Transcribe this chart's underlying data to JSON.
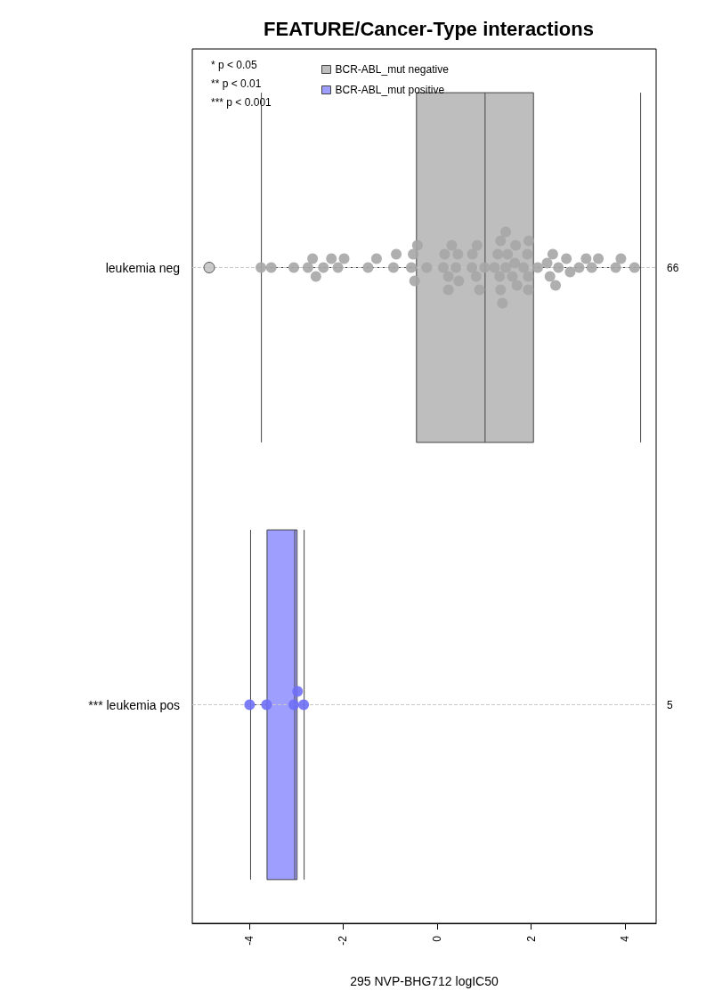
{
  "chart_data": {
    "type": "box",
    "title": "FEATURE/Cancer-Type interactions",
    "xlabel": "295 NVP-BHG712 logIC50",
    "orientation": "horizontal",
    "categories": [
      "leukemia neg",
      "*** leukemia pos"
    ],
    "y2_categories": [
      "66",
      "5"
    ],
    "xlim": [
      -5.21,
      4.66
    ],
    "xticks": [
      -4,
      -2,
      0,
      2,
      4
    ],
    "grid": "y",
    "legend": "top left",
    "marker": "circle",
    "annotations": [
      "* p < 0.05",
      "** p < 0.01",
      "*** p < 0.001"
    ],
    "series": [
      {
        "name": "BCR-ABL_mut negative",
        "color": "#bebebe",
        "boxes": [
          {
            "low": -3.74,
            "q1": -0.44,
            "median": 1.02,
            "q3": 2.05,
            "high": 4.33,
            "outliers": [
              -4.85
            ]
          },
          null
        ]
      },
      {
        "name": "BCR-ABL_mut positive",
        "color": "#9e9eff",
        "boxes": [
          null,
          {
            "low": -3.97,
            "q1": -3.62,
            "median": -3.03,
            "q3": -2.98,
            "high": -2.83
          }
        ]
      },
      {
        "type": "scatter",
        "color": "#a6a6a6",
        "x": [
          "leukemia neg",
          "leukemia neg",
          "leukemia neg",
          "leukemia neg",
          "leukemia neg",
          "leukemia neg",
          "leukemia neg",
          "leukemia neg",
          "leukemia neg",
          "leukemia neg",
          "leukemia neg",
          "leukemia neg",
          "leukemia neg",
          "leukemia neg",
          "leukemia neg",
          "leukemia neg",
          "leukemia neg",
          "leukemia neg",
          "leukemia neg",
          "leukemia neg",
          "leukemia neg",
          "leukemia neg",
          "leukemia neg",
          "leukemia neg",
          "leukemia neg",
          "leukemia neg",
          "leukemia neg",
          "leukemia neg",
          "leukemia neg",
          "leukemia neg",
          "leukemia neg",
          "leukemia neg",
          "leukemia neg",
          "leukemia neg",
          "leukemia neg",
          "leukemia neg",
          "leukemia neg",
          "leukemia neg",
          "leukemia neg",
          "leukemia neg",
          "leukemia neg",
          "leukemia neg",
          "leukemia neg",
          "leukemia neg",
          "leukemia neg",
          "leukemia neg",
          "leukemia neg",
          "leukemia neg",
          "leukemia neg",
          "leukemia neg",
          "leukemia neg",
          "leukemia neg",
          "leukemia neg",
          "leukemia neg",
          "leukemia neg",
          "leukemia neg",
          "leukemia neg",
          "leukemia neg",
          "leukemia neg",
          "leukemia neg",
          "leukemia neg",
          "leukemia neg",
          "leukemia neg",
          "leukemia neg",
          "leukemia neg",
          "leukemia neg"
        ],
        "values": [
          -3.75,
          -3.53,
          -3.05,
          -2.75,
          -2.65,
          -2.58,
          -2.42,
          -2.25,
          -2.11,
          -1.98,
          -1.47,
          -1.29,
          -0.93,
          -0.87,
          -0.55,
          -0.51,
          -0.48,
          -0.42,
          -0.22,
          0.13,
          0.16,
          0.24,
          0.24,
          0.31,
          0.4,
          0.44,
          0.46,
          0.74,
          0.75,
          0.83,
          0.85,
          0.9,
          1.01,
          1.22,
          1.29,
          1.33,
          1.35,
          1.35,
          1.39,
          1.46,
          1.46,
          1.5,
          1.6,
          1.65,
          1.67,
          1.7,
          1.84,
          1.92,
          1.94,
          1.94,
          1.95,
          2.14,
          2.34,
          2.4,
          2.46,
          2.52,
          2.58,
          2.75,
          2.83,
          3.02,
          3.17,
          3.29,
          3.43,
          3.8,
          3.91,
          4.2
        ]
      },
      {
        "type": "scatter",
        "color": "#6f6ff7",
        "x": [
          "*** leukemia pos",
          "*** leukemia pos",
          "*** leukemia pos",
          "*** leukemia pos",
          "*** leukemia pos"
        ],
        "values": [
          -3.99,
          -3.63,
          -3.05,
          -2.97,
          -2.84
        ]
      }
    ]
  }
}
